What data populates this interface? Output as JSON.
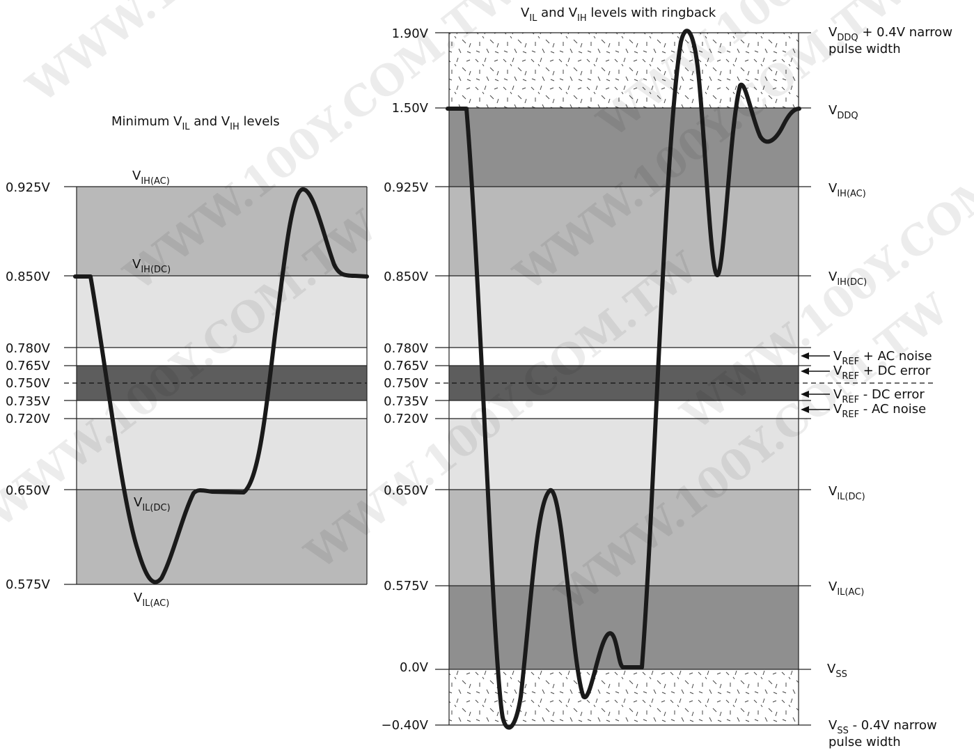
{
  "left_panel": {
    "title": {
      "main": "Minimum V",
      "s1": "IL",
      "mid": " and V",
      "s2": "IH",
      "end": " levels"
    },
    "ticks": [
      "0.925V",
      "0.850V",
      "0.780V",
      "0.765V",
      "0.750V",
      "0.735V",
      "0.720V",
      "0.650V",
      "0.575V"
    ],
    "labels": {
      "vih_ac": {
        "base": "V",
        "sub": "IH(AC)"
      },
      "vih_dc": {
        "base": "V",
        "sub": "IH(DC)"
      },
      "vil_dc": {
        "base": "V",
        "sub": "IL(DC)"
      },
      "vil_ac": {
        "base": "V",
        "sub": "IL(AC)"
      }
    }
  },
  "right_panel": {
    "title": {
      "main": "V",
      "s1": "IL",
      "mid": " and V",
      "s2": "IH",
      "end": " levels with ringback"
    },
    "ticks": [
      "1.90V",
      "1.50V",
      "0.925V",
      "0.850V",
      "0.780V",
      "0.765V",
      "0.750V",
      "0.735V",
      "0.720V",
      "0.650V",
      "0.575V",
      "0.0V",
      "−0.40V"
    ],
    "labels": {
      "vddq_plus": {
        "base": "V",
        "sub": "DDQ",
        "tail": " + 0.4V narrow",
        "line2": "pulse width"
      },
      "vddq": {
        "base": "V",
        "sub": "DDQ"
      },
      "vih_ac": {
        "base": "V",
        "sub": "IH(AC)"
      },
      "vih_dc": {
        "base": "V",
        "sub": "IH(DC)"
      },
      "vref_ac_plus": {
        "base": "V",
        "sub": "REF",
        "tail": " + AC noise"
      },
      "vref_dc_plus": {
        "base": "V",
        "sub": "REF",
        "tail": " + DC error"
      },
      "vref_dc_minus": {
        "base": "V",
        "sub": "REF",
        "tail": " - DC error"
      },
      "vref_ac_minus": {
        "base": "V",
        "sub": "REF",
        "tail": " - AC noise"
      },
      "vil_dc": {
        "base": "V",
        "sub": "IL(DC)"
      },
      "vil_ac": {
        "base": "V",
        "sub": "IL(AC)"
      },
      "vss": {
        "base": "V",
        "sub": "SS"
      },
      "vss_minus": {
        "base": "V",
        "sub": "SS",
        "tail": " - 0.4V narrow",
        "line2": "pulse width"
      }
    }
  },
  "watermark": "WWW.100Y.COM.TW",
  "colors": {
    "band_dark": "#b9b9b9",
    "band_light": "#e3e3e3",
    "band_darkest": "#5d5d5d",
    "band_mid_right": "#8f8f8f",
    "waveform": "#1a1a1a"
  }
}
